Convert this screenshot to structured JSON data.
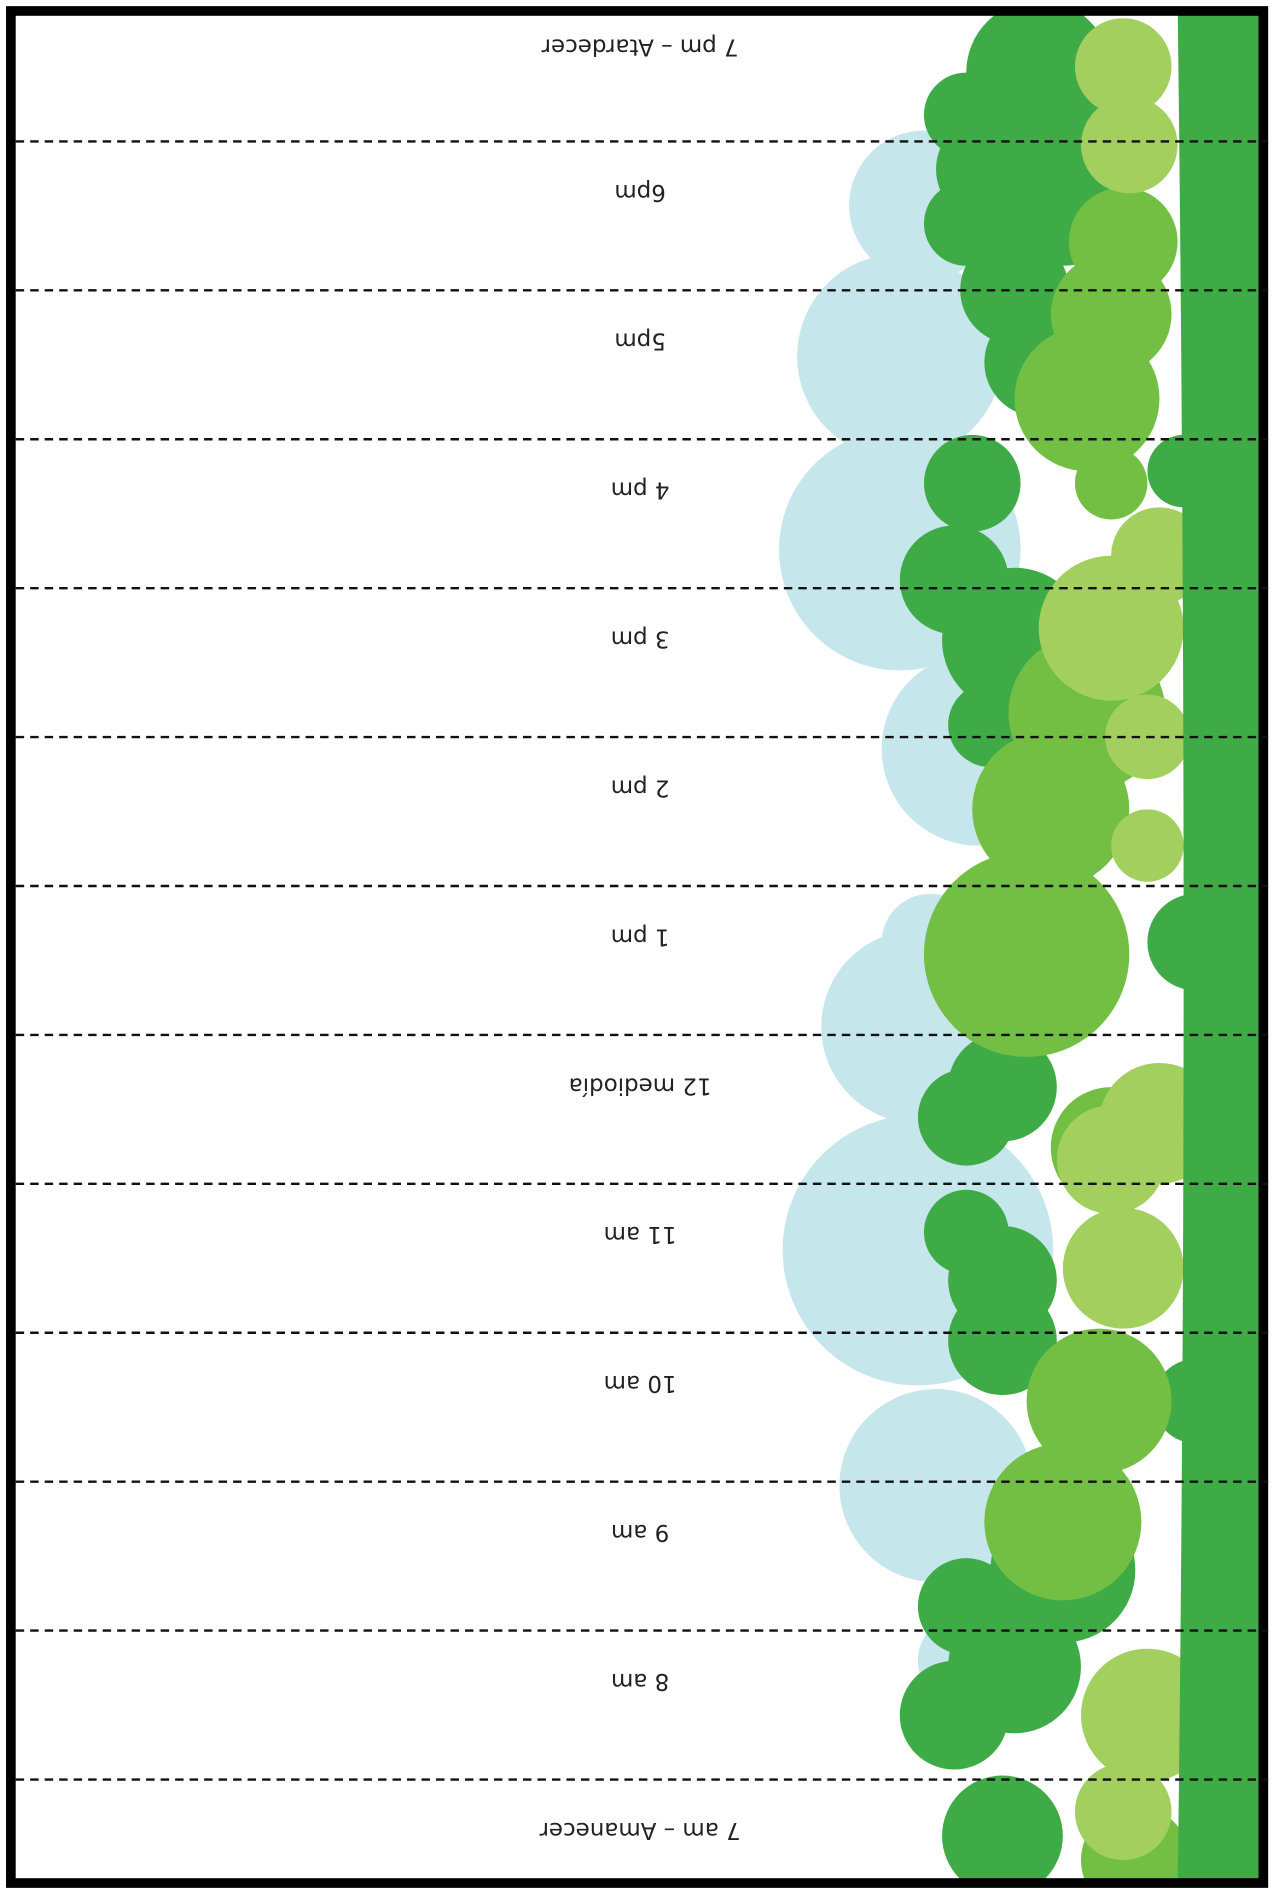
{
  "labels": [
    "7 pm – Atardecer",
    "6pm",
    "5pm",
    "4 pm",
    "3 pm",
    "2 pm",
    "1 pm",
    "12 mediodía",
    "11 am",
    "10 am",
    "9 am",
    "8 am",
    "7 am – Amanecer"
  ]
}
